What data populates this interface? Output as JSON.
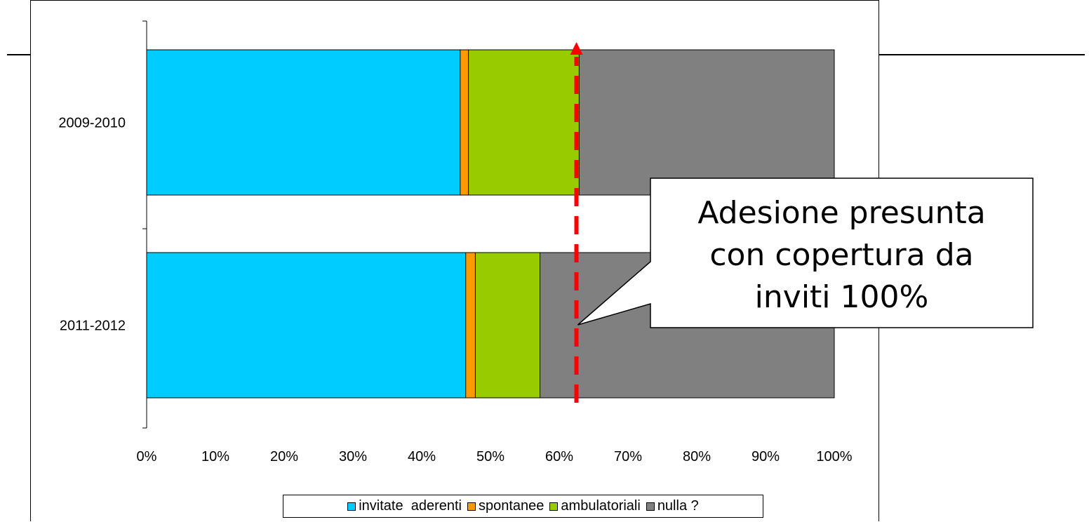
{
  "chart_data": {
    "type": "bar",
    "orientation": "horizontal",
    "stacked": true,
    "normalized": true,
    "categories": [
      "2009-2010",
      "2011-2012"
    ],
    "series": [
      {
        "name": "invitate  aderenti",
        "color": "#00CCFF",
        "values": [
          45.6,
          46.4
        ]
      },
      {
        "name": "spontanee",
        "color": "#FF9900",
        "values": [
          1.2,
          1.4
        ]
      },
      {
        "name": "ambulatoriali",
        "color": "#99CC00",
        "values": [
          16.1,
          9.4
        ]
      },
      {
        "name": "nulla ?",
        "color": "#808080",
        "values": [
          37.1,
          42.8
        ]
      }
    ],
    "x_ticks": [
      "0%",
      "10%",
      "20%",
      "30%",
      "40%",
      "50%",
      "60%",
      "70%",
      "80%",
      "90%",
      "100%"
    ],
    "xlim": [
      0,
      100
    ],
    "legend_position": "bottom",
    "grid": false,
    "annotation": {
      "text_lines": [
        "Adesione presunta",
        "con copertura da",
        "inviti 100%"
      ],
      "line_value": 62.5,
      "line_color": "#FF0000",
      "line_style": "dashed arrow"
    }
  }
}
